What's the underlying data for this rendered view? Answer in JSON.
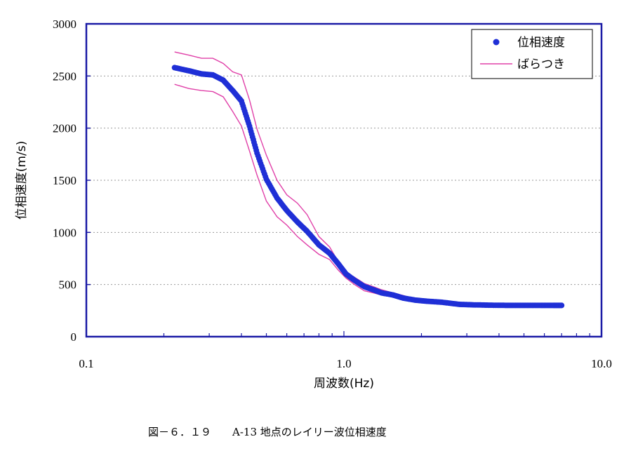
{
  "chart_data": {
    "type": "scatter",
    "xlabel": "周波数(Hz)",
    "ylabel": "位相速度(m/s)",
    "x_scale": "log",
    "xlim": [
      0.1,
      10.0
    ],
    "ylim": [
      0,
      3000
    ],
    "x_ticks": [
      0.1,
      1.0,
      10.0
    ],
    "x_tick_labels": [
      "0.1",
      "1.0",
      "10.0"
    ],
    "y_ticks": [
      0,
      500,
      1000,
      1500,
      2000,
      2500,
      3000
    ],
    "y_tick_labels": [
      "0",
      "500",
      "1000",
      "1500",
      "2000",
      "2500",
      "3000"
    ],
    "grid": "horizontal dashed",
    "legend_position": "top-right",
    "colors": {
      "frame": "#1a1aa6",
      "phase_velocity": "#1f2fd6",
      "variation": "#e040a8",
      "grid": "#9a9a9a"
    },
    "series": [
      {
        "name": "位相速度",
        "style": "markers",
        "x": [
          0.22,
          0.25,
          0.28,
          0.31,
          0.34,
          0.37,
          0.4,
          0.43,
          0.46,
          0.5,
          0.55,
          0.6,
          0.66,
          0.72,
          0.8,
          0.88,
          0.95,
          1.02,
          1.1,
          1.2,
          1.3,
          1.4,
          1.55,
          1.7,
          1.9,
          2.1,
          2.4,
          2.8,
          3.2,
          3.7,
          4.3,
          5.0,
          5.8,
          6.5,
          7.0
        ],
        "y": [
          2580,
          2550,
          2520,
          2510,
          2460,
          2360,
          2260,
          2020,
          1760,
          1510,
          1330,
          1210,
          1100,
          1010,
          880,
          800,
          700,
          600,
          540,
          480,
          450,
          420,
          400,
          370,
          350,
          340,
          330,
          310,
          305,
          302,
          300,
          300,
          300,
          300,
          300
        ]
      },
      {
        "name": "ばらつき",
        "style": "line",
        "x": [
          0.22,
          0.25,
          0.28,
          0.31,
          0.34,
          0.37,
          0.4,
          0.43,
          0.46,
          0.5,
          0.55,
          0.6,
          0.66,
          0.72,
          0.8,
          0.88,
          0.95,
          1.02,
          1.1,
          1.2,
          1.3,
          1.4,
          1.55,
          1.7,
          1.9,
          2.1,
          2.4,
          2.8,
          3.2,
          3.7,
          4.3,
          5.0,
          5.8,
          6.5,
          7.0
        ],
        "y": [
          2730,
          2700,
          2670,
          2670,
          2620,
          2540,
          2510,
          2270,
          1990,
          1740,
          1500,
          1360,
          1280,
          1170,
          960,
          860,
          720,
          620,
          570,
          510,
          480,
          450,
          420,
          395,
          360,
          345,
          335,
          315,
          308,
          304,
          302,
          310,
          300,
          300,
          300
        ]
      },
      {
        "name": "",
        "style": "line",
        "x": [
          0.22,
          0.25,
          0.28,
          0.31,
          0.34,
          0.37,
          0.4,
          0.43,
          0.46,
          0.5,
          0.55,
          0.6,
          0.66,
          0.72,
          0.8,
          0.88,
          0.95,
          1.02,
          1.1,
          1.2,
          1.3,
          1.4,
          1.55,
          1.7,
          1.9,
          2.1,
          2.4,
          2.8,
          3.2,
          3.7,
          4.3,
          5.0,
          5.8,
          6.5,
          7.0
        ],
        "y": [
          2420,
          2380,
          2360,
          2350,
          2300,
          2160,
          2020,
          1780,
          1550,
          1300,
          1150,
          1070,
          960,
          880,
          790,
          740,
          640,
          560,
          500,
          440,
          420,
          400,
          385,
          355,
          340,
          332,
          325,
          305,
          302,
          300,
          298,
          285,
          298,
          300,
          300
        ]
      }
    ]
  },
  "caption": "図－６．１９　　A-13 地点のレイリー波位相速度"
}
